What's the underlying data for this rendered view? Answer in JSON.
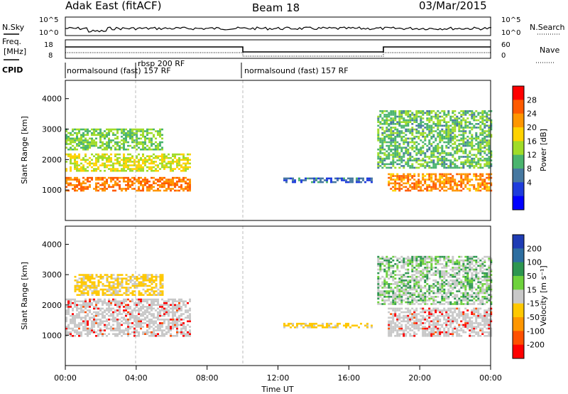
{
  "header": {
    "title": "Adak East (fitACF)",
    "beam": "Beam 18",
    "date": "03/Mar/2015"
  },
  "panels": {
    "noise": {
      "left_label": "N.Sky",
      "right_label": "N.Search",
      "left_ticks": [
        "10^5",
        "10^0"
      ],
      "right_ticks": [
        "10^5",
        "10^0"
      ]
    },
    "freq": {
      "left_label_1": "Freq.",
      "left_label_2": "[MHz]",
      "right_label": "Nave",
      "left_ticks": [
        "18",
        "8"
      ],
      "right_ticks": [
        "60",
        "0"
      ]
    },
    "cpid": {
      "label": "CPID",
      "segments": [
        "normalsound (fast) 157 RF",
        "rbsp 200 RF",
        "normalsound (fast) 157 RF"
      ]
    }
  },
  "colorbars": {
    "power": {
      "label": "Power [dB]",
      "ticks": [
        "28",
        "24",
        "20",
        "16",
        "12",
        "8",
        "4"
      ],
      "colors": [
        "#ff0000",
        "#ff5a00",
        "#ff9600",
        "#ffd200",
        "#a0dc28",
        "#4ab46e",
        "#4678a0",
        "#1e3cdc",
        "#0000ff"
      ]
    },
    "velocity": {
      "label": "Velocity [m s⁻¹]",
      "ticks": [
        "200",
        "100",
        "50",
        "15",
        "-15",
        "-50",
        "-100",
        "-200"
      ],
      "colors": [
        "#1e3cb4",
        "#2d6ea0",
        "#2d9650",
        "#6ed23c",
        "#c8c8c8",
        "#ffc800",
        "#ff9600",
        "#ff5000",
        "#ff0000"
      ]
    }
  },
  "x_axis": {
    "label": "Time UT",
    "ticks": [
      "00:00",
      "04:00",
      "08:00",
      "12:00",
      "16:00",
      "20:00",
      "00:00"
    ]
  },
  "chart_data": [
    {
      "type": "heatmap",
      "title": "",
      "ylabel": "Slant Range [km]",
      "xlabel": "",
      "ylim": [
        0,
        4600
      ],
      "yticks": [
        1000,
        2000,
        3000,
        4000
      ],
      "xlim_hours": [
        0,
        24
      ],
      "colorbar": "Power [dB]",
      "bands": [
        {
          "name": "evening_main",
          "t_start": 0.0,
          "t_end": 7.0,
          "range_km": [
            950,
            1400
          ],
          "value_db": 26
        },
        {
          "name": "evening_upper1",
          "t_start": 0.0,
          "t_end": 7.0,
          "range_km": [
            1600,
            2200
          ],
          "value_db": 18
        },
        {
          "name": "evening_upper2",
          "t_start": 0.0,
          "t_end": 5.5,
          "range_km": [
            2300,
            3000
          ],
          "value_db": 14
        },
        {
          "name": "day_echo",
          "t_start": 12.3,
          "t_end": 17.3,
          "range_km": [
            1230,
            1380
          ],
          "value_db": 7
        },
        {
          "name": "morning_main",
          "t_start": 18.2,
          "t_end": 24.0,
          "range_km": [
            950,
            1500
          ],
          "value_db": 25
        },
        {
          "name": "morning_upper",
          "t_start": 17.6,
          "t_end": 24.0,
          "range_km": [
            1700,
            3600
          ],
          "value_db": 13
        }
      ]
    },
    {
      "type": "heatmap",
      "title": "",
      "ylabel": "Slant Range [km]",
      "xlabel": "Time UT",
      "ylim": [
        0,
        4600
      ],
      "yticks": [
        1000,
        2000,
        3000,
        4000
      ],
      "xlim_hours": [
        0,
        24
      ],
      "colorbar": "Velocity [m s⁻¹]",
      "bands": [
        {
          "name": "evening_ground",
          "t_start": 0.0,
          "t_end": 7.0,
          "range_km": [
            950,
            2200
          ],
          "value_ms": 0
        },
        {
          "name": "evening_upper",
          "t_start": 0.5,
          "t_end": 5.5,
          "range_km": [
            2300,
            3000
          ],
          "value_ms": -60
        },
        {
          "name": "day_echo",
          "t_start": 12.3,
          "t_end": 17.3,
          "range_km": [
            1230,
            1380
          ],
          "value_ms": -40
        },
        {
          "name": "morning_ground",
          "t_start": 18.2,
          "t_end": 24.0,
          "range_km": [
            950,
            1900
          ],
          "value_ms": 0
        },
        {
          "name": "morning_upper",
          "t_start": 17.6,
          "t_end": 24.0,
          "range_km": [
            2000,
            3600
          ],
          "value_ms": 20
        }
      ]
    }
  ]
}
